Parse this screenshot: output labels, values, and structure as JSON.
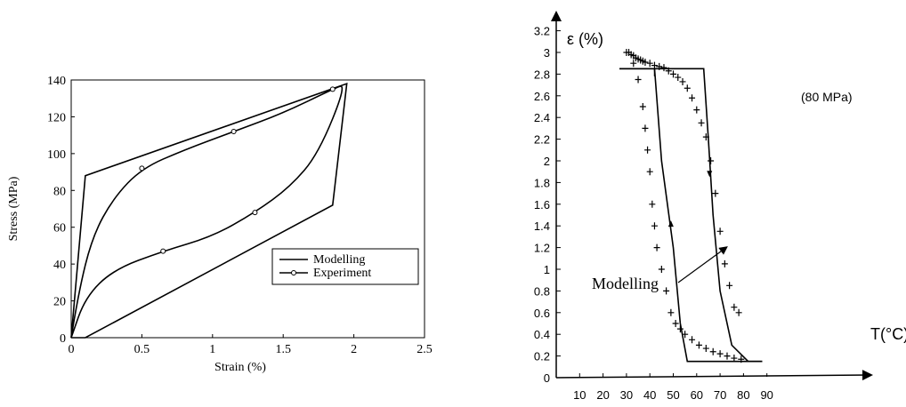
{
  "chart_data": [
    {
      "type": "line",
      "xlabel": "Strain (%)",
      "ylabel": "Stress (MPa)",
      "xlim": [
        0,
        2.5
      ],
      "ylim": [
        0,
        140
      ],
      "x_ticks": [
        "0",
        "0.5",
        "1",
        "1.5",
        "2",
        "2.5"
      ],
      "y_ticks": [
        "0",
        "20",
        "40",
        "60",
        "80",
        "100",
        "120",
        "140"
      ],
      "x_tick_values": [
        0,
        0.5,
        1,
        1.5,
        2,
        2.5
      ],
      "y_tick_values": [
        0,
        20,
        40,
        60,
        80,
        100,
        120,
        140
      ],
      "legend_position": "lower-right",
      "series": [
        {
          "name": "Modelling",
          "style": "line",
          "points": [
            [
              0,
              0
            ],
            [
              0.1,
              88
            ],
            [
              1.95,
              138
            ],
            [
              1.85,
              72
            ],
            [
              0.1,
              0
            ],
            [
              0,
              0
            ]
          ]
        },
        {
          "name": "Experiment",
          "style": "line-circle",
          "points": [
            [
              0,
              0
            ],
            [
              0.05,
              24
            ],
            [
              0.15,
              55
            ],
            [
              0.3,
              76
            ],
            [
              0.5,
              92
            ],
            [
              0.8,
              102
            ],
            [
              1.15,
              112
            ],
            [
              1.5,
              122
            ],
            [
              1.85,
              135
            ],
            [
              1.95,
              138
            ],
            [
              1.75,
              100
            ],
            [
              1.55,
              82
            ],
            [
              1.3,
              68
            ],
            [
              1.0,
              55
            ],
            [
              0.65,
              47
            ],
            [
              0.3,
              37
            ],
            [
              0.1,
              22
            ],
            [
              0,
              0
            ]
          ],
          "marker_points": [
            [
              0.5,
              92
            ],
            [
              1.15,
              112
            ],
            [
              1.85,
              135
            ],
            [
              1.3,
              68
            ],
            [
              0.65,
              47
            ]
          ]
        }
      ]
    },
    {
      "type": "line",
      "xlabel": "T(°C)",
      "ylabel": "ε (%)",
      "xlim": [
        0,
        90
      ],
      "ylim": [
        0,
        3.2
      ],
      "x_ticks": [
        "10",
        "20",
        "30",
        "40",
        "50",
        "60",
        "70",
        "80",
        "90"
      ],
      "x_tick_values": [
        10,
        20,
        30,
        40,
        50,
        60,
        70,
        80,
        90
      ],
      "y_ticks": [
        "0",
        "0.2",
        "0.4",
        "0.6",
        "0.8",
        "1",
        "1.2",
        "1.4",
        "1.6",
        "1.8",
        "2",
        "2.2",
        "2.4",
        "2.6",
        "2.8",
        "3",
        "3.2"
      ],
      "y_tick_values": [
        0,
        0.2,
        0.4,
        0.6,
        0.8,
        1,
        1.2,
        1.4,
        1.6,
        1.8,
        2,
        2.2,
        2.4,
        2.6,
        2.8,
        3,
        3.2
      ],
      "annotations": [
        "(80 MPa)",
        "Modelling"
      ],
      "series": [
        {
          "style": "line",
          "points": [
            [
              27,
              2.85
            ],
            [
              42,
              2.85
            ],
            [
              45,
              2.0
            ],
            [
              50,
              1.2
            ],
            [
              53,
              0.5
            ],
            [
              56,
              0.15
            ],
            [
              88,
              0.15
            ]
          ]
        },
        {
          "style": "line",
          "points": [
            [
              88,
              0.15
            ],
            [
              82,
              0.15
            ],
            [
              75,
              0.3
            ],
            [
              70,
              0.8
            ],
            [
              67,
              1.5
            ],
            [
              65,
              2.2
            ],
            [
              63,
              2.85
            ],
            [
              27,
              2.85
            ]
          ]
        },
        {
          "style": "cross",
          "points": [
            [
              30,
              3.0
            ],
            [
              31,
              3.0
            ],
            [
              32,
              2.98
            ],
            [
              33,
              2.97
            ],
            [
              34,
              2.95
            ],
            [
              35,
              2.94
            ],
            [
              36,
              2.93
            ],
            [
              37,
              2.92
            ],
            [
              38,
              2.91
            ],
            [
              40,
              2.9
            ],
            [
              42,
              2.88
            ],
            [
              44,
              2.87
            ],
            [
              46,
              2.86
            ],
            [
              48,
              2.83
            ],
            [
              50,
              2.8
            ],
            [
              52,
              2.77
            ],
            [
              54,
              2.73
            ],
            [
              56,
              2.67
            ],
            [
              58,
              2.58
            ],
            [
              60,
              2.47
            ],
            [
              62,
              2.35
            ],
            [
              64,
              2.22
            ],
            [
              66,
              2.0
            ],
            [
              68,
              1.7
            ],
            [
              70,
              1.35
            ],
            [
              72,
              1.05
            ],
            [
              74,
              0.85
            ],
            [
              76,
              0.65
            ],
            [
              78,
              0.6
            ],
            [
              33,
              2.9
            ],
            [
              35,
              2.75
            ],
            [
              37,
              2.5
            ],
            [
              38,
              2.3
            ],
            [
              39,
              2.1
            ],
            [
              40,
              1.9
            ],
            [
              41,
              1.6
            ],
            [
              42,
              1.4
            ],
            [
              43,
              1.2
            ],
            [
              45,
              1.0
            ],
            [
              47,
              0.8
            ],
            [
              49,
              0.6
            ],
            [
              51,
              0.5
            ],
            [
              53,
              0.45
            ],
            [
              55,
              0.4
            ],
            [
              58,
              0.35
            ],
            [
              61,
              0.3
            ],
            [
              64,
              0.27
            ],
            [
              67,
              0.24
            ],
            [
              70,
              0.22
            ],
            [
              73,
              0.2
            ],
            [
              76,
              0.18
            ],
            [
              79,
              0.17
            ]
          ]
        }
      ]
    }
  ]
}
